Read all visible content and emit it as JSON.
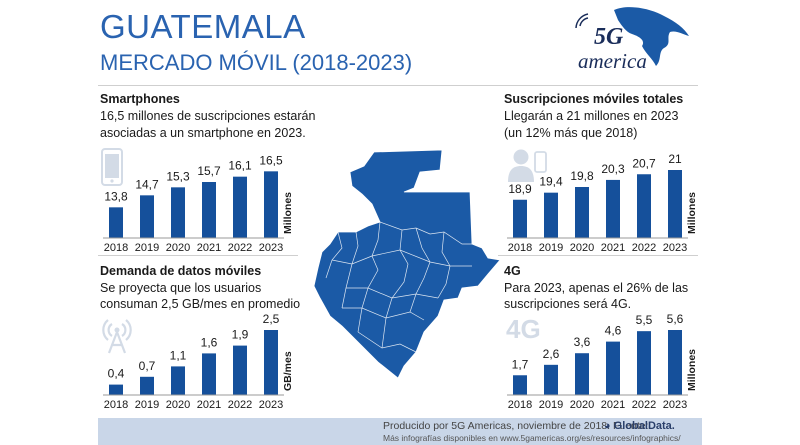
{
  "header": {
    "title": "GUATEMALA",
    "subtitle": "MERCADO MÓVIL (2018-2023)",
    "logo_text": "america",
    "logo_mark": "5G"
  },
  "panels": {
    "smartphones": {
      "title": "Smartphones",
      "desc_line1": "16,5 millones de suscripciones estarán",
      "desc_line2": "asociadas a un smartphone en 2023.",
      "icon": "smartphone-icon"
    },
    "total": {
      "title": "Suscripciones móviles totales",
      "desc_line1": "Llegarán a 21 millones en 2023",
      "desc_line2": "(un 12% más que 2018)",
      "icon": "user-phone-icon"
    },
    "data": {
      "title": "Demanda de datos móviles",
      "desc_line1": "Se proyecta que los usuarios",
      "desc_line2": "consuman 2,5 GB/mes en promedio",
      "icon": "antenna-icon"
    },
    "fourg": {
      "title": "4G",
      "desc_line1": "Para 2023, apenas el 26% de las",
      "desc_line2": "suscripciones será 4G.",
      "icon": "4g-icon",
      "icon_text": "4G"
    }
  },
  "chart_data": [
    {
      "id": "smartphones",
      "type": "bar",
      "categories": [
        "2018",
        "2019",
        "2020",
        "2021",
        "2022",
        "2023"
      ],
      "values": [
        13.8,
        14.7,
        15.3,
        15.7,
        16.1,
        16.5
      ],
      "labels": [
        "13,8",
        "14,7",
        "15,3",
        "15,7",
        "16,1",
        "16,5"
      ],
      "unit_label": "Millones",
      "ylim": [
        11.5,
        16.6
      ]
    },
    {
      "id": "total",
      "type": "bar",
      "categories": [
        "2018",
        "2019",
        "2020",
        "2021",
        "2022",
        "2023"
      ],
      "values": [
        18.9,
        19.4,
        19.8,
        20.3,
        20.7,
        21.0
      ],
      "labels": [
        "18,9",
        "19,4",
        "19,8",
        "20,3",
        "20,7",
        "21"
      ],
      "unit_label": "Millones",
      "ylim": [
        16.2,
        21.0
      ]
    },
    {
      "id": "data",
      "type": "bar",
      "categories": [
        "2018",
        "2019",
        "2020",
        "2021",
        "2022",
        "2023"
      ],
      "values": [
        0.4,
        0.7,
        1.1,
        1.6,
        1.9,
        2.5
      ],
      "labels": [
        "0,4",
        "0,7",
        "1,1",
        "1,6",
        "1,9",
        "2,5"
      ],
      "unit_label": "GB/mes",
      "ylim": [
        0,
        2.5
      ]
    },
    {
      "id": "fourg",
      "type": "bar",
      "categories": [
        "2018",
        "2019",
        "2020",
        "2021",
        "2022",
        "2023"
      ],
      "values": [
        1.7,
        2.6,
        3.6,
        4.6,
        5.5,
        5.6
      ],
      "labels": [
        "1,7",
        "2,6",
        "3,6",
        "4,6",
        "5,5",
        "5,6"
      ],
      "unit_label": "Millones",
      "ylim": [
        0,
        5.6
      ]
    }
  ],
  "colors": {
    "accent": "#2a63b0",
    "bar": "#15509b",
    "map": "#1b5aa6",
    "icon": "#d3dbe6",
    "footer": "#c9d6e8"
  },
  "footer": {
    "line1": "Producido por 5G Americas, noviembre de 2018. Fuente:",
    "line2": "Más infografías disponibles en www.5gamericas.org/es/resources/infographics/",
    "source_logo": "GlobalData."
  }
}
